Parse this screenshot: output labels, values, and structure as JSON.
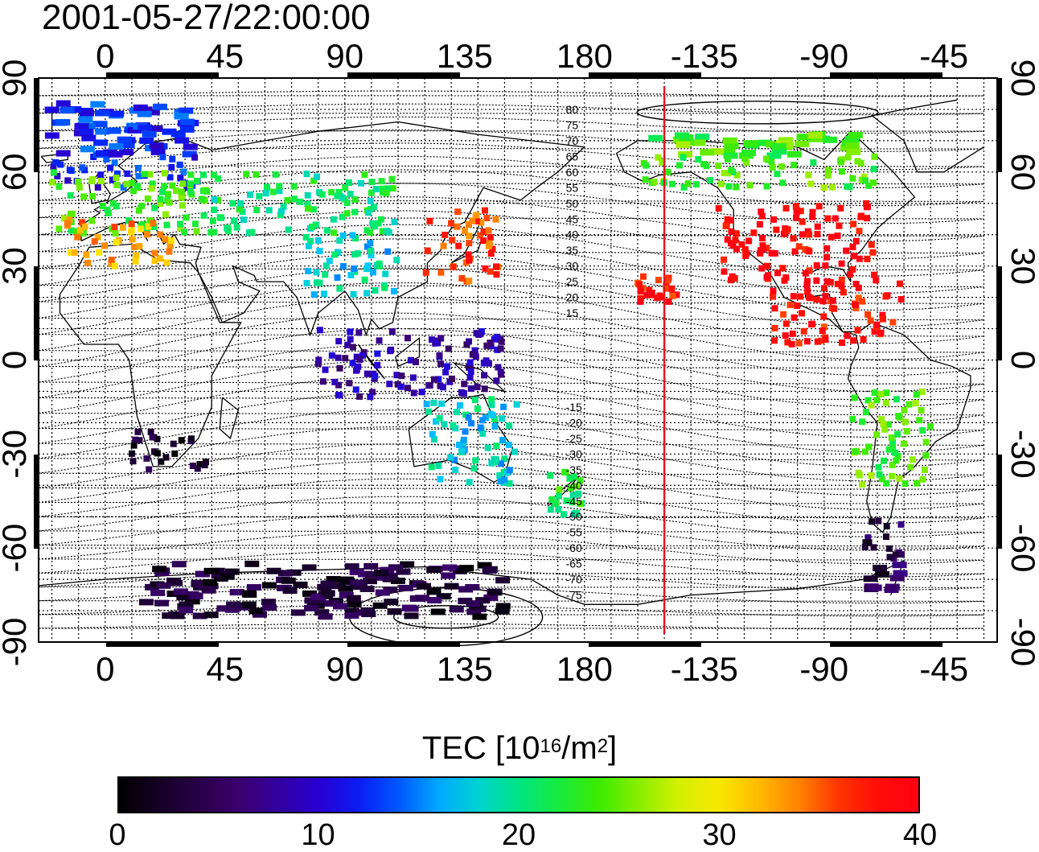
{
  "header": {
    "timestamp": "2001-05-27/22:00:00"
  },
  "map": {
    "x_tick_labels": [
      "0",
      "45",
      "90",
      "135",
      "180",
      "-135",
      "-90",
      "-45"
    ],
    "y_tick_labels": [
      "90",
      "60",
      "30",
      "0",
      "-30",
      "-60",
      "-90"
    ],
    "contour_labels": [
      "80",
      "75",
      "70",
      "65",
      "60",
      "55",
      "50",
      "45",
      "40",
      "35",
      "30",
      "25",
      "20",
      "15",
      "-15",
      "-20",
      "-25",
      "-30",
      "-35",
      "-40",
      "-45",
      "-50",
      "-55",
      "-60",
      "-65",
      "-70",
      "-75"
    ],
    "contour_label_lats": [
      80,
      75,
      70,
      65,
      60,
      55,
      50,
      45,
      40,
      35,
      30,
      25,
      20,
      15,
      -15,
      -20,
      -25,
      -30,
      -35,
      -40,
      -45,
      -50,
      -55,
      -60,
      -65,
      -70,
      -75
    ],
    "meridian_longitude": -150,
    "meridian_color": "#e8141e",
    "tec_regions": [
      {
        "lon": [
          -20,
          35
        ],
        "lat": [
          55,
          82
        ],
        "tec": 12
      },
      {
        "lon": [
          -20,
          40
        ],
        "lat": [
          40,
          60
        ],
        "tec": 24
      },
      {
        "lon": [
          -15,
          25
        ],
        "lat": [
          30,
          45
        ],
        "tec": 33
      },
      {
        "lon": [
          40,
          110
        ],
        "lat": [
          40,
          60
        ],
        "tec": 21
      },
      {
        "lon": [
          75,
          110
        ],
        "lat": [
          20,
          40
        ],
        "tec": 18
      },
      {
        "lon": [
          120,
          148
        ],
        "lat": [
          25,
          48
        ],
        "tec": 36
      },
      {
        "lon": [
          10,
          38
        ],
        "lat": [
          -35,
          -22
        ],
        "tec": 2
      },
      {
        "lon": [
          80,
          150
        ],
        "lat": [
          -12,
          10
        ],
        "tec": 8
      },
      {
        "lon": [
          120,
          155
        ],
        "lat": [
          -40,
          -12
        ],
        "tec": 18
      },
      {
        "lon": [
          165,
          180
        ],
        "lat": [
          -50,
          -35
        ],
        "tec": 22
      },
      {
        "lon": [
          15,
          150
        ],
        "lat": [
          -82,
          -65
        ],
        "tec": 3
      },
      {
        "lon": [
          -130,
          -70
        ],
        "lat": [
          25,
          50
        ],
        "tec": 39
      },
      {
        "lon": [
          -110,
          -60
        ],
        "lat": [
          5,
          25
        ],
        "tec": 38
      },
      {
        "lon": [
          -160,
          -145
        ],
        "lat": [
          18,
          28
        ],
        "tec": 38
      },
      {
        "lon": [
          -160,
          -70
        ],
        "lat": [
          55,
          72
        ],
        "tec": 24
      },
      {
        "lon": [
          -80,
          -50
        ],
        "lat": [
          -40,
          -10
        ],
        "tec": 24
      },
      {
        "lon": [
          -75,
          -60
        ],
        "lat": [
          -75,
          -50
        ],
        "tec": 4
      }
    ]
  },
  "colorbar": {
    "title_prefix": "TEC  [10",
    "title_exp1": "16",
    "title_mid": "/m",
    "title_exp2": "2",
    "title_suffix": "]",
    "min": 0,
    "max": 40,
    "tick_values": [
      0,
      10,
      20,
      30,
      40
    ],
    "tick_labels": [
      "0",
      "10",
      "20",
      "30",
      "40"
    ]
  }
}
